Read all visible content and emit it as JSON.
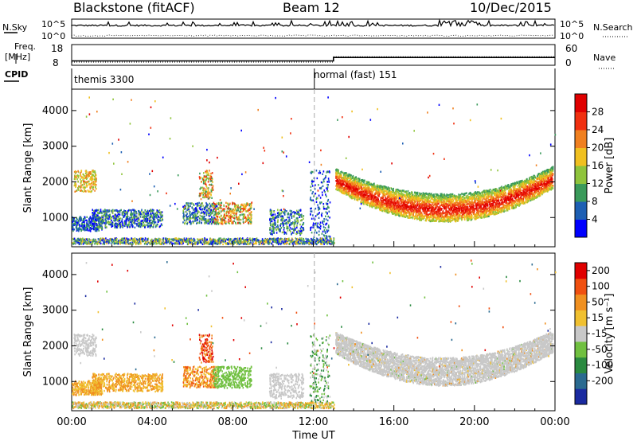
{
  "header": {
    "radar": "Blackstone (fitACF)",
    "beam": "Beam 12",
    "date": "10/Dec/2015"
  },
  "side_labels": {
    "n_sky": "N.Sky",
    "n_search": "N.Search",
    "freq_top": "Freq.",
    "freq_bottom": "[MHz]",
    "nave": "Nave",
    "cpid": "CPID"
  },
  "cpid_modes": [
    "themis 3300",
    "normal (fast) 151"
  ],
  "chart_data": [
    {
      "type": "line",
      "name": "noise",
      "yticks": [
        "10^5",
        "10^0"
      ],
      "yticks_right": [
        "10^5",
        "10^0"
      ]
    },
    {
      "type": "line",
      "name": "frequency-nave",
      "yticks": [
        "18",
        "8"
      ],
      "yticks_right": [
        "60",
        "0"
      ],
      "freq_segments": [
        {
          "x": [
            0,
            13
          ],
          "y": 10.3
        },
        {
          "x": [
            13,
            24
          ],
          "y": 12.1
        }
      ],
      "nave_segments": [
        {
          "x": [
            0,
            13
          ],
          "y": 10
        },
        {
          "x": [
            13,
            24
          ],
          "y": 27
        }
      ]
    },
    {
      "type": "heatmap",
      "name": "power",
      "ylabel": "Slant Range [km]",
      "xlabel": "Time UT",
      "xticks": [
        "00:00",
        "04:00",
        "08:00",
        "12:00",
        "16:00",
        "20:00",
        "00:00"
      ],
      "xlim": [
        0,
        24
      ],
      "ylim": [
        180,
        4600
      ],
      "yticks": [
        1000,
        2000,
        3000,
        4000
      ],
      "colorbar": {
        "label": "Power [dB]",
        "ticks": [
          "4",
          "8",
          "12",
          "16",
          "20",
          "24",
          "28"
        ],
        "colors": [
          "#0000ff",
          "#1d5fb3",
          "#3a9a5a",
          "#8fc43c",
          "#f0c020",
          "#f08020",
          "#f03010",
          "#e00000"
        ]
      }
    },
    {
      "type": "heatmap",
      "name": "velocity",
      "ylabel": "Slant Range [km]",
      "xlabel": "Time UT",
      "xticks": [
        "00:00",
        "04:00",
        "08:00",
        "12:00",
        "16:00",
        "20:00",
        "00:00"
      ],
      "xlim": [
        0,
        24
      ],
      "ylim": [
        180,
        4600
      ],
      "yticks": [
        1000,
        2000,
        3000,
        4000
      ],
      "colorbar": {
        "label": "Velocity [m s⁻¹]",
        "ticks": [
          "200",
          "100",
          "50",
          "15",
          "-15",
          "-50",
          "-100",
          "-200"
        ],
        "colors": [
          "#1a2aa0",
          "#2a6a90",
          "#2a8a40",
          "#70c040",
          "#c8c8c8",
          "#f0c030",
          "#f09020",
          "#f05010",
          "#e00000"
        ]
      }
    }
  ]
}
